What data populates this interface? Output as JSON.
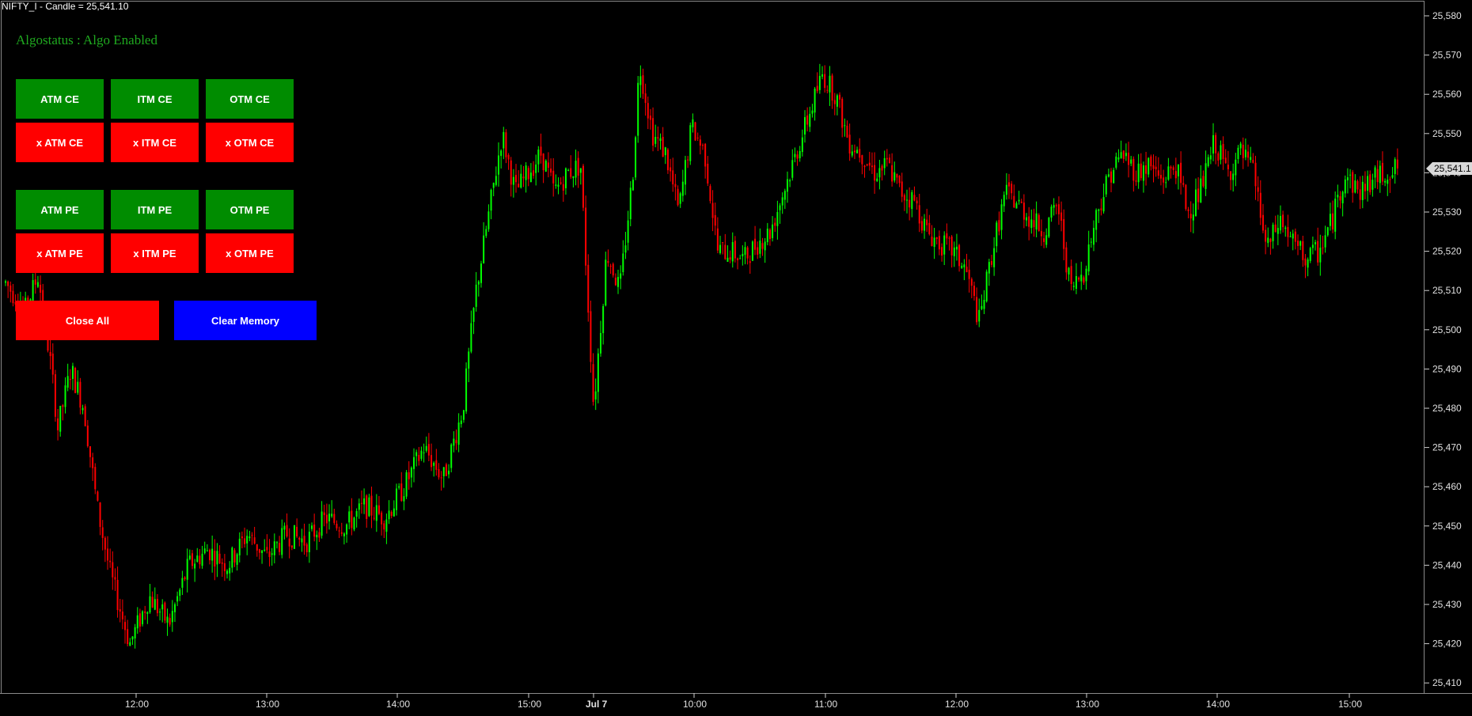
{
  "title": {
    "symbol": "NIFTY_I",
    "text": "NIFTY_I - Candle = 25,541.10"
  },
  "status_text": "Algostatus : Algo Enabled",
  "buttons": {
    "atm_ce": "ATM CE",
    "itm_ce": "ITM CE",
    "otm_ce": "OTM CE",
    "x_atm_ce": "x ATM CE",
    "x_itm_ce": "x ITM CE",
    "x_otm_ce": "x OTM CE",
    "atm_pe": "ATM PE",
    "itm_pe": "ITM PE",
    "otm_pe": "OTM PE",
    "x_atm_pe": "x ATM PE",
    "x_itm_pe": "x ITM PE",
    "x_otm_pe": "x OTM PE",
    "close_all": "Close All",
    "clear_memory": "Clear Memory"
  },
  "colors": {
    "background": "#000000",
    "up_candle": "#00ff00",
    "down_candle": "#ff0000",
    "buy_button": "#008c00",
    "exit_button": "#ff0000",
    "clear_button": "#0000ff",
    "status_text": "#1fa81f"
  },
  "chart_data": {
    "type": "candlestick",
    "y_ticks": [
      "25,580",
      "25,570",
      "25,560",
      "25,550",
      "25,540",
      "25,530",
      "25,520",
      "25,510",
      "25,500",
      "25,490",
      "25,480",
      "25,470",
      "25,460",
      "25,450",
      "25,440",
      "25,430",
      "25,420",
      "25,410"
    ],
    "ylim": [
      25405,
      25583
    ],
    "x_ticks": [
      "12:00",
      "13:00",
      "14:00",
      "15:00",
      "Jul 7",
      "10:00",
      "11:00",
      "12:00",
      "13:00",
      "14:00",
      "15:00"
    ],
    "last_price_label": "25,541.1",
    "last_price": 25541.1,
    "price_path": [
      [
        0,
        25512
      ],
      [
        3,
        25505
      ],
      [
        5,
        25514
      ],
      [
        7,
        25490
      ],
      [
        8,
        25475
      ],
      [
        10,
        25490
      ],
      [
        12,
        25480
      ],
      [
        14,
        25455
      ],
      [
        16,
        25438
      ],
      [
        19,
        25420
      ],
      [
        22,
        25432
      ],
      [
        25,
        25425
      ],
      [
        28,
        25440
      ],
      [
        31,
        25444
      ],
      [
        34,
        25440
      ],
      [
        37,
        25448
      ],
      [
        40,
        25442
      ],
      [
        43,
        25448
      ],
      [
        46,
        25446
      ],
      [
        49,
        25452
      ],
      [
        52,
        25450
      ],
      [
        55,
        25455
      ],
      [
        58,
        25452
      ],
      [
        61,
        25460
      ],
      [
        64,
        25470
      ],
      [
        67,
        25462
      ],
      [
        70,
        25480
      ],
      [
        72,
        25510
      ],
      [
        74,
        25530
      ],
      [
        76,
        25550
      ],
      [
        78,
        25535
      ],
      [
        80,
        25540
      ],
      [
        82,
        25545
      ],
      [
        84,
        25535
      ],
      [
        86,
        25540
      ],
      [
        88,
        25542
      ],
      [
        90,
        25480
      ],
      [
        92,
        25520
      ],
      [
        94,
        25510
      ],
      [
        96,
        25540
      ],
      [
        97,
        25568
      ],
      [
        99,
        25550
      ],
      [
        101,
        25545
      ],
      [
        103,
        25530
      ],
      [
        105,
        25552
      ],
      [
        107,
        25545
      ],
      [
        109,
        25520
      ],
      [
        111,
        25520
      ],
      [
        113,
        25518
      ],
      [
        115,
        25522
      ],
      [
        117,
        25525
      ],
      [
        119,
        25535
      ],
      [
        121,
        25545
      ],
      [
        123,
        25555
      ],
      [
        125,
        25565
      ],
      [
        127,
        25560
      ],
      [
        129,
        25548
      ],
      [
        131,
        25545
      ],
      [
        133,
        25540
      ],
      [
        135,
        25542
      ],
      [
        137,
        25535
      ],
      [
        139,
        25533
      ],
      [
        141,
        25525
      ],
      [
        143,
        25522
      ],
      [
        145,
        25520
      ],
      [
        147,
        25515
      ],
      [
        149,
        25502
      ],
      [
        151,
        25520
      ],
      [
        153,
        25535
      ],
      [
        155,
        25532
      ],
      [
        157,
        25528
      ],
      [
        159,
        25525
      ],
      [
        161,
        25532
      ],
      [
        163,
        25510
      ],
      [
        165,
        25515
      ],
      [
        167,
        25530
      ],
      [
        169,
        25540
      ],
      [
        171,
        25545
      ],
      [
        173,
        25540
      ],
      [
        175,
        25542
      ],
      [
        177,
        25538
      ],
      [
        179,
        25542
      ],
      [
        181,
        25530
      ],
      [
        183,
        25536
      ],
      [
        185,
        25548
      ],
      [
        187,
        25540
      ],
      [
        189,
        25545
      ],
      [
        191,
        25540
      ],
      [
        193,
        25520
      ],
      [
        195,
        25528
      ],
      [
        197,
        25522
      ],
      [
        199,
        25518
      ],
      [
        201,
        25520
      ],
      [
        203,
        25528
      ],
      [
        205,
        25540
      ],
      [
        207,
        25535
      ],
      [
        209,
        25538
      ],
      [
        211,
        25540
      ],
      [
        213,
        25541
      ]
    ]
  }
}
